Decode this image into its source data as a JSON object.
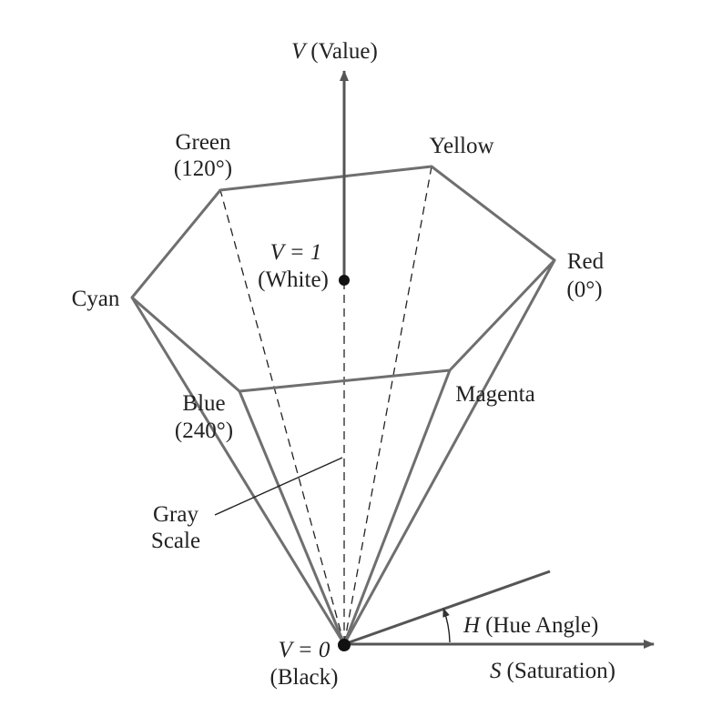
{
  "axes": {
    "value_symbol": "V",
    "value_label": "(Value)",
    "saturation_symbol": "S",
    "saturation_label": "(Saturation)",
    "hue_symbol": "H",
    "hue_label": "(Hue Angle)"
  },
  "vertices": {
    "green_name": "Green",
    "green_angle": "(120°)",
    "yellow_name": "Yellow",
    "red_name": "Red",
    "red_angle": "(0°)",
    "cyan_name": "Cyan",
    "blue_name": "Blue",
    "blue_angle": "(240°)",
    "magenta_name": "Magenta"
  },
  "points": {
    "white_value": "V = 1",
    "white_label": "(White)",
    "black_value": "V = 0",
    "black_label": "(Black)"
  },
  "gray_scale": {
    "line1": "Gray",
    "line2": "Scale"
  },
  "colors": {
    "edge": "#6f6f6f",
    "axis": "#555555",
    "text": "#222222"
  }
}
